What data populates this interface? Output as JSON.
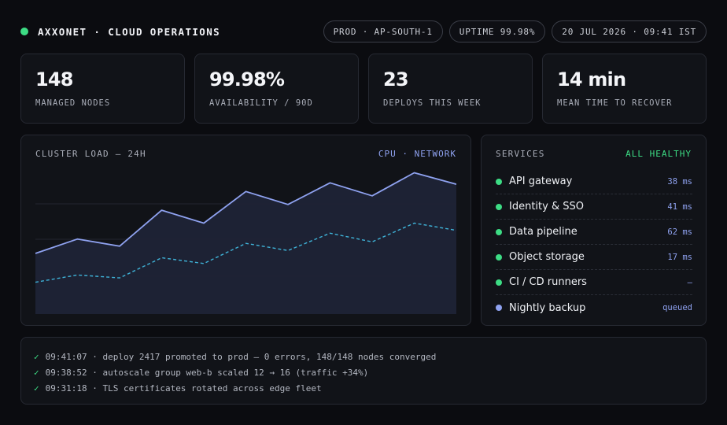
{
  "header": {
    "title": "AXXONET · CLOUD OPERATIONS",
    "status_color": "#3ddc84",
    "pills": [
      "PROD · AP-SOUTH-1",
      "UPTIME 99.98%",
      "20 JUL 2026 · 09:41 IST"
    ]
  },
  "kpis": [
    {
      "value": "148",
      "label": "MANAGED NODES"
    },
    {
      "value": "99.98%",
      "label": "AVAILABILITY / 90D"
    },
    {
      "value": "23",
      "label": "DEPLOYS THIS WEEK"
    },
    {
      "value": "14 min",
      "label": "MEAN TIME TO RECOVER"
    }
  ],
  "cluster": {
    "title": "CLUSTER LOAD — 24H",
    "legend": "CPU · NETWORK"
  },
  "chart_data": {
    "type": "line",
    "title": "CLUSTER LOAD — 24H",
    "ylim": [
      0,
      100
    ],
    "grid": true,
    "series": [
      {
        "name": "CPU",
        "color": "#8fa2f0",
        "style": "solid",
        "fill": true,
        "values": [
          41,
          51,
          46,
          71,
          62,
          84,
          75,
          90,
          81,
          97,
          89
        ]
      },
      {
        "name": "Network",
        "color": "#3fb3d8",
        "style": "dashed",
        "fill": false,
        "values": [
          21,
          26,
          24,
          38,
          34,
          48,
          43,
          55,
          49,
          62,
          57
        ]
      }
    ]
  },
  "services": {
    "title": "SERVICES",
    "status": "ALL HEALTHY",
    "items": [
      {
        "name": "API gateway",
        "meta": "38 ms",
        "color": "#3ddc84"
      },
      {
        "name": "Identity & SSO",
        "meta": "41 ms",
        "color": "#3ddc84"
      },
      {
        "name": "Data pipeline",
        "meta": "62 ms",
        "color": "#3ddc84"
      },
      {
        "name": "Object storage",
        "meta": "17 ms",
        "color": "#3ddc84"
      },
      {
        "name": "CI / CD runners",
        "meta": "—",
        "color": "#3ddc84"
      },
      {
        "name": "Nightly backup",
        "meta": "queued",
        "color": "#8fa2f0"
      }
    ]
  },
  "log": {
    "check": "✓",
    "entries": [
      "09:41:07 · deploy 2417 promoted to prod — 0 errors, 148/148 nodes converged",
      "09:38:52 · autoscale group web-b scaled 12 → 16 (traffic +34%)",
      "09:31:18 · TLS certificates rotated across edge fleet"
    ]
  }
}
